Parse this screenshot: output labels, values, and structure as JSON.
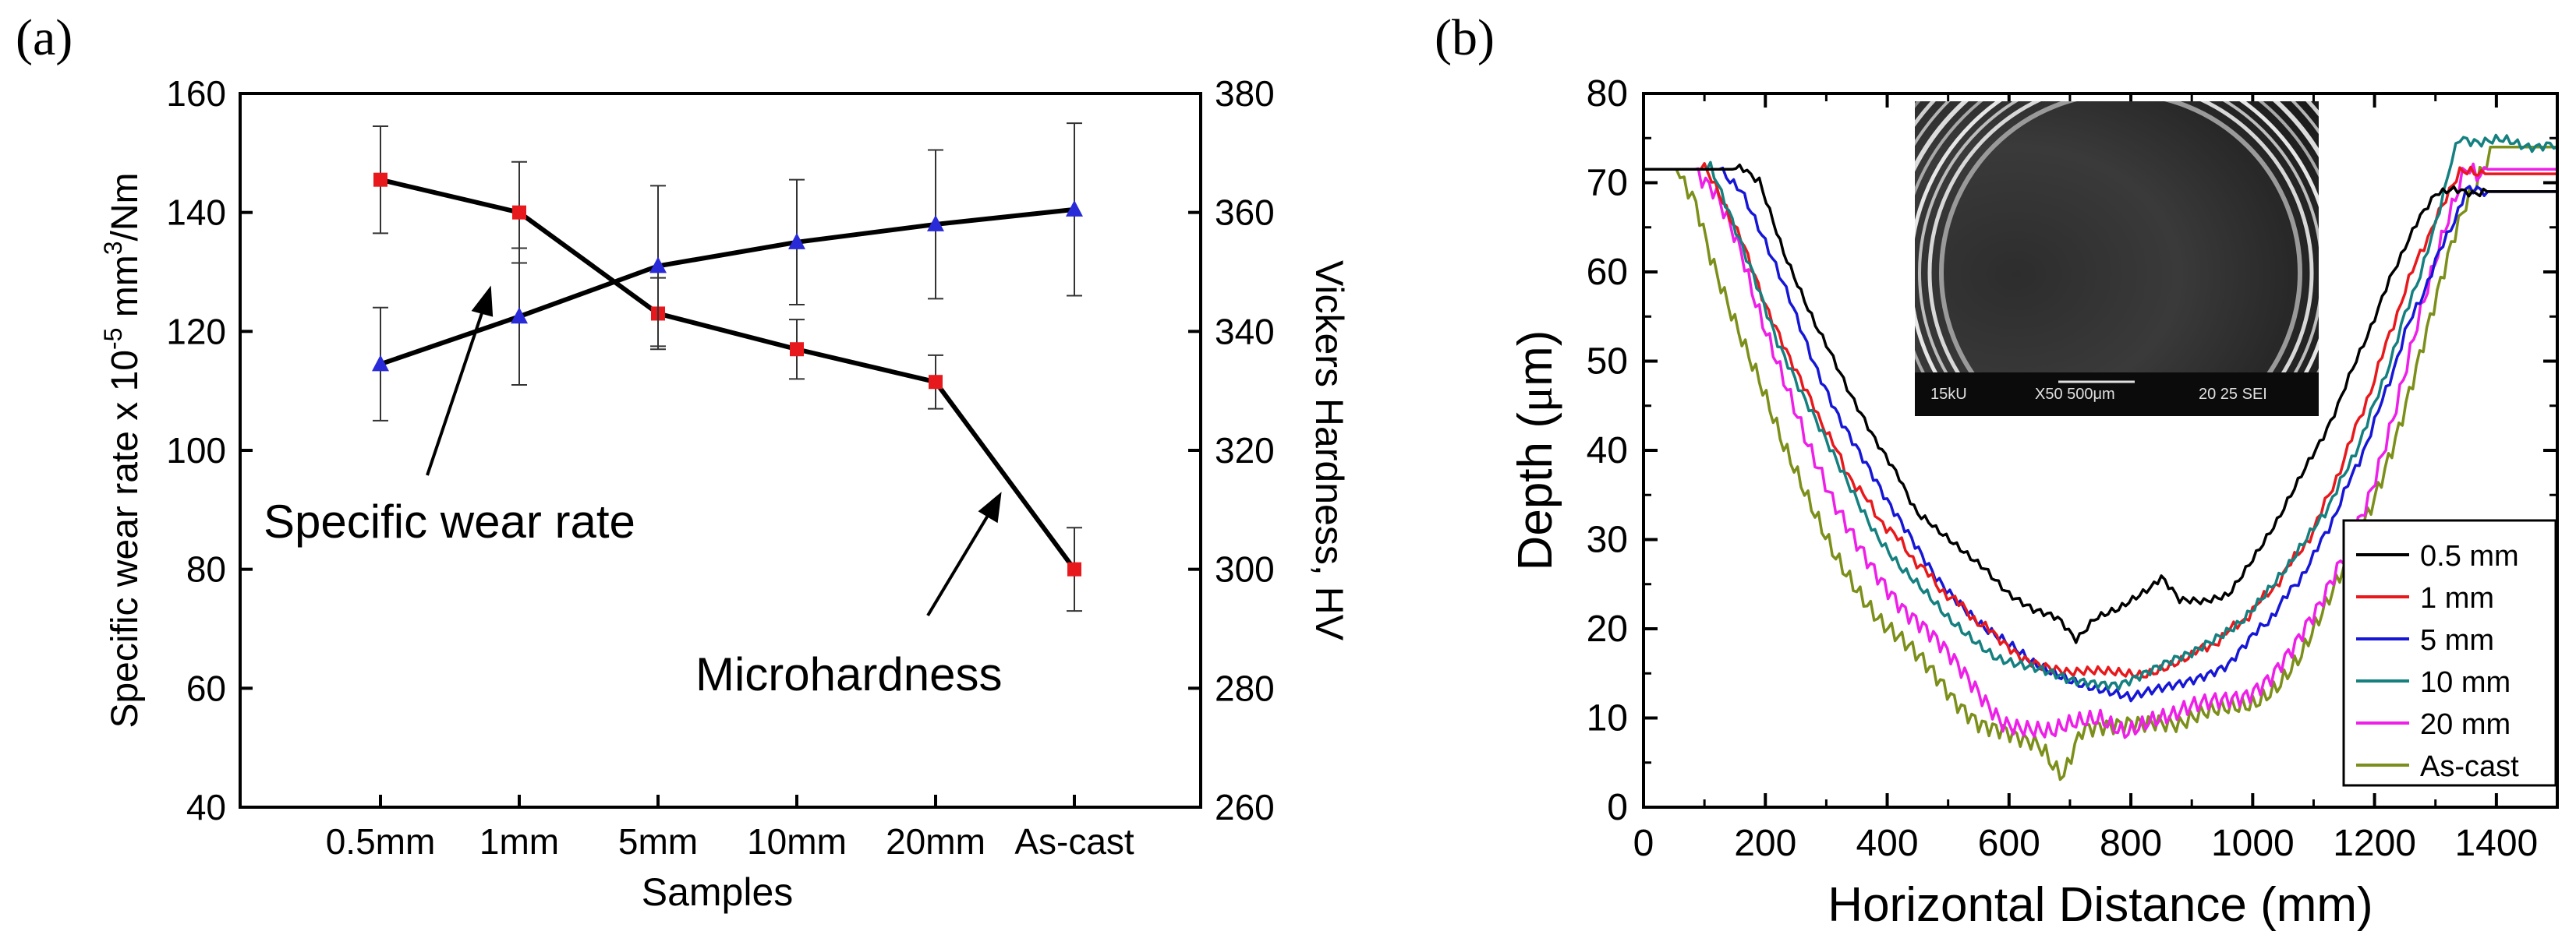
{
  "chart_data": [
    {
      "panel_label": "(a)",
      "type": "line",
      "categories": [
        "0.5mm",
        "1mm",
        "5mm",
        "10mm",
        "20mm",
        "As-cast"
      ],
      "xlabel": "Samples",
      "ylabel": "Specific wear rate x 10",
      "ylabel_exp": "-5",
      "ylabel_tail": " mm",
      "ylabel_exp2": "3",
      "ylabel_end": "/Nm",
      "y2label": "Vickers Hardness, HV",
      "ylim": [
        40,
        160
      ],
      "yticks": [
        "40",
        "60",
        "80",
        "100",
        "120",
        "140",
        "160"
      ],
      "y2lim": [
        260,
        380
      ],
      "y2ticks": [
        "260",
        "280",
        "300",
        "320",
        "340",
        "360",
        "380"
      ],
      "series": [
        {
          "axis": "left",
          "marker": "square",
          "color": "#e8191c",
          "values": [
            145.5,
            140,
            123,
            117,
            111.5,
            80
          ],
          "err": [
            9,
            8.5,
            6,
            5,
            4.5,
            7
          ]
        },
        {
          "axis": "right",
          "marker": "triangle",
          "color": "#2a2bd8",
          "values": [
            334.5,
            342.5,
            351,
            355,
            358,
            360.5
          ],
          "err": [
            9.5,
            11.5,
            13.5,
            10.5,
            12.5,
            14.5
          ]
        }
      ],
      "annotations": [
        "Specific wear rate",
        "Microhardness"
      ]
    },
    {
      "panel_label": "(b)",
      "type": "line",
      "xlabel": "Horizontal Distance (mm)",
      "ylabel_pre": "Depth (",
      "ylabel_mu": "μ",
      "ylabel_post": "m)",
      "xlim": [
        0,
        1500
      ],
      "xticks": [
        "0",
        "200",
        "400",
        "600",
        "800",
        "1000",
        "1200",
        "1400"
      ],
      "ylim": [
        0,
        80
      ],
      "yticks": [
        "0",
        "10",
        "20",
        "30",
        "40",
        "50",
        "60",
        "70",
        "80"
      ],
      "legend_position": "bottom-right",
      "inset_text": [
        "15kU",
        "X50 500μm",
        "20 25 SEI"
      ],
      "series": [
        {
          "name": "0.5 mm",
          "color": "#000000",
          "x": [
            0,
            170,
            190,
            230,
            270,
            300,
            340,
            380,
            420,
            450,
            480,
            520,
            560,
            600,
            640,
            680,
            710,
            740,
            780,
            820,
            850,
            880,
            920,
            960,
            1000,
            1040,
            1080,
            1140,
            1200,
            1250,
            1300,
            1500
          ],
          "y": [
            71.5,
            71.5,
            70,
            62,
            56,
            52,
            46,
            41,
            37,
            33,
            31,
            29,
            27,
            24,
            22,
            21,
            19,
            21,
            22,
            24,
            26,
            23,
            23,
            24,
            28,
            32,
            37,
            45,
            55,
            63,
            69,
            69
          ]
        },
        {
          "name": "1 mm",
          "color": "#e8191c",
          "x": [
            0,
            100,
            130,
            160,
            200,
            240,
            280,
            330,
            380,
            430,
            480,
            530,
            580,
            620,
            660,
            700,
            740,
            780,
            820,
            860,
            900,
            950,
            1000,
            1050,
            1100,
            1150,
            1200,
            1250,
            1300,
            1340,
            1500
          ],
          "y": [
            71.5,
            71.5,
            68,
            64,
            56,
            50,
            45,
            38,
            33,
            29,
            25,
            22,
            19,
            17,
            16,
            15,
            15,
            15,
            15,
            16,
            17,
            19,
            22,
            26,
            31,
            39,
            48,
            58,
            66,
            71,
            71
          ]
        },
        {
          "name": "5 mm",
          "color": "#1616d6",
          "x": [
            0,
            130,
            160,
            200,
            240,
            280,
            320,
            360,
            400,
            440,
            480,
            520,
            560,
            600,
            640,
            680,
            720,
            760,
            800,
            840,
            880,
            920,
            960,
            1000,
            1050,
            1100,
            1150,
            1200,
            1250,
            1300,
            1350,
            1500
          ],
          "y": [
            71.5,
            71.5,
            69,
            63,
            57,
            50,
            44,
            39,
            34,
            30,
            26,
            23,
            20,
            18,
            16,
            15,
            14,
            13,
            12,
            13,
            14,
            15,
            16,
            19,
            23,
            28,
            35,
            43,
            53,
            61,
            69,
            69
          ]
        },
        {
          "name": "10 mm",
          "color": "#158080",
          "x": [
            0,
            110,
            140,
            180,
            220,
            260,
            300,
            340,
            380,
            420,
            460,
            500,
            540,
            580,
            620,
            660,
            700,
            740,
            780,
            820,
            860,
            900,
            940,
            980,
            1020,
            1060,
            1100,
            1150,
            1200,
            1250,
            1300,
            1320,
            1340,
            1500
          ],
          "y": [
            71.5,
            71.5,
            67,
            60,
            52,
            46,
            41,
            36,
            31,
            27,
            24,
            21,
            19,
            17,
            16,
            15,
            14,
            14,
            14,
            15,
            16,
            17,
            19,
            21,
            24,
            27,
            31,
            37,
            45,
            55,
            65,
            71,
            75,
            74
          ]
        },
        {
          "name": "20 mm",
          "color": "#ee1fe8",
          "x": [
            0,
            90,
            120,
            160,
            190,
            230,
            270,
            310,
            350,
            390,
            430,
            470,
            510,
            550,
            590,
            630,
            670,
            710,
            750,
            790,
            830,
            870,
            910,
            950,
            990,
            1030,
            1070,
            1110,
            1150,
            1190,
            1230,
            1270,
            1310,
            1350,
            1500
          ],
          "y": [
            71.5,
            71.5,
            68,
            62,
            56,
            48,
            40,
            34,
            30,
            26,
            22,
            19,
            16,
            13,
            10,
            9,
            8,
            9,
            10,
            9,
            10,
            10,
            11,
            12,
            13,
            15,
            18,
            22,
            28,
            35,
            44,
            54,
            63,
            71.5,
            71.5
          ]
        },
        {
          "name": "As-cast",
          "color": "#7c8f1a",
          "x": [
            0,
            60,
            80,
            110,
            150,
            190,
            230,
            270,
            310,
            350,
            390,
            430,
            470,
            510,
            550,
            590,
            630,
            660,
            690,
            720,
            760,
            800,
            840,
            880,
            920,
            960,
            1000,
            1040,
            1080,
            1120,
            1160,
            1200,
            1240,
            1280,
            1320,
            1350,
            1390,
            1500
          ],
          "y": [
            71.5,
            71.5,
            68,
            62,
            55,
            48,
            40,
            34,
            29,
            25,
            21,
            18,
            15,
            12,
            10,
            9,
            7,
            6,
            4,
            8,
            9,
            10,
            10,
            9,
            10,
            11,
            12,
            14,
            17,
            22,
            28,
            35,
            43,
            52,
            61,
            68,
            74,
            74
          ]
        }
      ]
    }
  ]
}
